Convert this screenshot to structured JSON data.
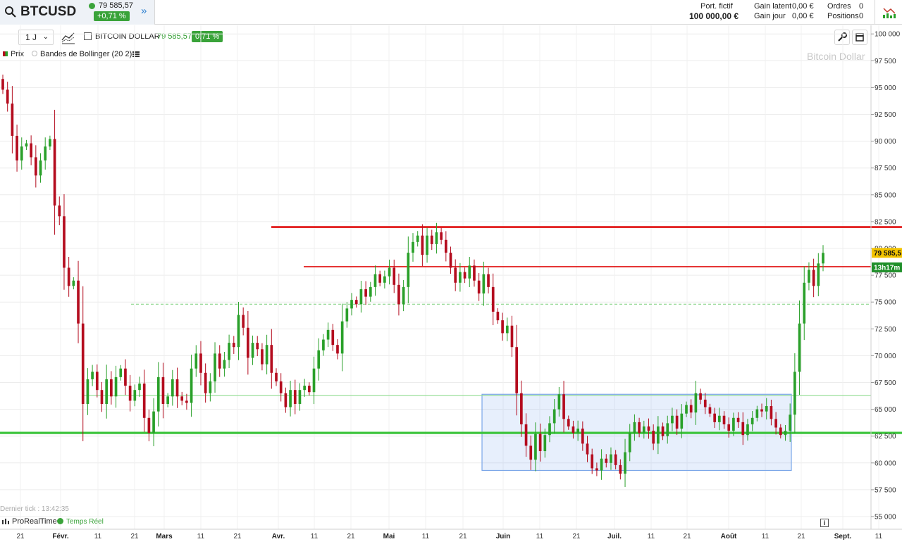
{
  "header": {
    "symbol": "BTCUSD",
    "quote_price": "79 585,57",
    "quote_change": "+0,71 %",
    "portfolio_label": "Port. fictif",
    "portfolio_value": "100 000,00 €",
    "unrealized_label": "Gain latent",
    "unrealized_value": "0,00 €",
    "daily_label": "Gain jour",
    "daily_value": "0,00 €",
    "orders_label": "Ordres",
    "orders_value": "0",
    "positions_label": "Positions",
    "positions_value": "0"
  },
  "toolbar": {
    "timeframe": "1 J",
    "instrument_name": "BITCOIN DOLLAR",
    "instrument_price": "79 585,57",
    "instrument_change": "0.71 %"
  },
  "legend": {
    "price": "Prix",
    "bollinger": "Bandes de Bollinger (20 2)"
  },
  "watermark": "Bitcoin Dollar",
  "footer": {
    "last_tick": "Dernier tick : 13:42:35",
    "provider": "ProRealTime",
    "realtime": "Temps Réel"
  },
  "colors": {
    "up": "#2aa02a",
    "down": "#b40c1e",
    "resistance": "#e01010",
    "support": "#3cc43c",
    "range_box": "#7aa6e8"
  },
  "chart_data": {
    "type": "candlestick",
    "y_ticks": [
      "100 000",
      "97 500",
      "95 000",
      "92 500",
      "90 000",
      "87 500",
      "85 000",
      "82 500",
      "80 000",
      "77 500",
      "75 000",
      "72 500",
      "70 000",
      "67 500",
      "65 000",
      "62 500",
      "60 000",
      "57 500",
      "55 000"
    ],
    "ylim": [
      55000,
      100000
    ],
    "x_ticks": [
      {
        "label": "21",
        "bold": false
      },
      {
        "label": "Févr.",
        "bold": true
      },
      {
        "label": "11",
        "bold": false
      },
      {
        "label": "21",
        "bold": false
      },
      {
        "label": "Mars",
        "bold": true
      },
      {
        "label": "11",
        "bold": false
      },
      {
        "label": "21",
        "bold": false
      },
      {
        "label": "Avr.",
        "bold": true
      },
      {
        "label": "11",
        "bold": false
      },
      {
        "label": "21",
        "bold": false
      },
      {
        "label": "Mai",
        "bold": true
      },
      {
        "label": "11",
        "bold": false
      },
      {
        "label": "21",
        "bold": false
      },
      {
        "label": "Juin",
        "bold": true
      },
      {
        "label": "11",
        "bold": false
      },
      {
        "label": "21",
        "bold": false
      },
      {
        "label": "Juil.",
        "bold": true
      },
      {
        "label": "11",
        "bold": false
      },
      {
        "label": "21",
        "bold": false
      },
      {
        "label": "Août",
        "bold": true
      },
      {
        "label": "11",
        "bold": false
      },
      {
        "label": "21",
        "bold": false
      },
      {
        "label": "Sept.",
        "bold": true
      },
      {
        "label": "11",
        "bold": false
      }
    ],
    "current_price_tag": "79 585,5",
    "countdown_tag": "13h17m",
    "closes": [
      94800,
      93500,
      90500,
      88200,
      89500,
      89800,
      88500,
      86800,
      88200,
      89500,
      90200,
      84000,
      83000,
      78200,
      76500,
      77000,
      73000,
      65500,
      67800,
      68500,
      66800,
      65500,
      67800,
      66200,
      68000,
      68800,
      67200,
      65800,
      66800,
      67400,
      64200,
      62800,
      64800,
      68000,
      65500,
      66200,
      67800,
      66200,
      65800,
      65600,
      68800,
      70200,
      68400,
      66500,
      67600,
      70200,
      68800,
      69600,
      71200,
      70800,
      73800,
      72600,
      69800,
      71200,
      70600,
      69200,
      71000,
      68400,
      67600,
      66500,
      65200,
      66800,
      65500,
      66800,
      67200,
      66600,
      68800,
      70500,
      71500,
      72400,
      71000,
      70200,
      73200,
      74400,
      75200,
      74800,
      76200,
      75500,
      76400,
      77600,
      76800,
      77400,
      78200,
      76600,
      74800,
      76400,
      79600,
      80600,
      81200,
      79400,
      81200,
      80400,
      81500,
      80800,
      79600,
      78200,
      76800,
      77800,
      77200,
      78400,
      77000,
      75800,
      77600,
      76400,
      74100,
      73300,
      72100,
      72800,
      70800,
      66500,
      63600,
      61600,
      60300,
      62700,
      61100,
      62600,
      63700,
      65000,
      66400,
      64100,
      63400,
      62800,
      63200,
      61800,
      60800,
      59500,
      59300,
      60400,
      60000,
      60800,
      59800,
      59000,
      61000,
      62800,
      63800,
      62800,
      63400,
      63000,
      61800,
      63400,
      62500,
      63700,
      64400,
      63200,
      64600,
      65400,
      64700,
      66500,
      65900,
      65200,
      64600,
      63800,
      64400,
      63600,
      63000,
      64200,
      63800,
      62600,
      63600,
      64200,
      65000,
      64800,
      65300,
      64100,
      63300,
      62600,
      63000,
      64500,
      68500,
      73000,
      76800,
      78000,
      76500,
      78600,
      79586
    ],
    "resistance_levels": [
      82000,
      78300
    ],
    "support_levels": [
      62800,
      66300
    ],
    "dashed_level": 74800,
    "range_box": {
      "y_top": 66400,
      "y_bottom": 59300
    }
  }
}
